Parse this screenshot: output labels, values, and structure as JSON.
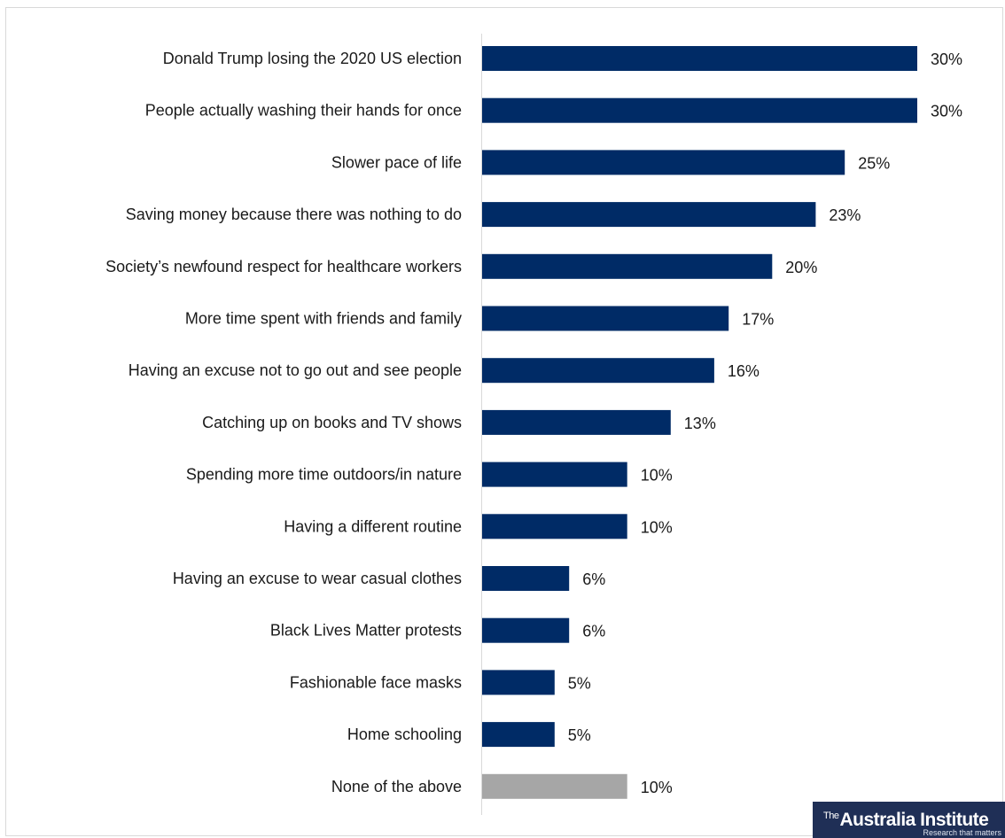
{
  "chart_data": {
    "type": "bar",
    "orientation": "horizontal",
    "categories": [
      "Donald Trump losing the 2020 US election",
      "People actually washing their hands for once",
      "Slower pace of life",
      "Saving money because there was nothing to do",
      "Society’s newfound respect for healthcare workers",
      "More time spent with friends and family",
      "Having an excuse not to go out and see people",
      "Catching up on books and TV shows",
      "Spending more time outdoors/in nature",
      "Having a different routine",
      "Having an excuse to wear casual clothes",
      "Black Lives Matter protests",
      "Fashionable face masks",
      "Home schooling",
      "None of the above"
    ],
    "values": [
      30,
      30,
      25,
      23,
      20,
      17,
      16,
      13,
      10,
      10,
      6,
      6,
      5,
      5,
      10
    ],
    "value_labels": [
      "30%",
      "30%",
      "25%",
      "23%",
      "20%",
      "17%",
      "16%",
      "13%",
      "10%",
      "10%",
      "6%",
      "6%",
      "5%",
      "5%",
      "10%"
    ],
    "bar_colors": [
      "#002b66",
      "#002b66",
      "#002b66",
      "#002b66",
      "#002b66",
      "#002b66",
      "#002b66",
      "#002b66",
      "#002b66",
      "#002b66",
      "#002b66",
      "#002b66",
      "#002b66",
      "#002b66",
      "#a6a6a6"
    ],
    "xlim": [
      0,
      30
    ],
    "grid": false,
    "legend": "none"
  },
  "logo": {
    "prefix": "The",
    "name": "Australia Institute",
    "tagline": "Research that matters"
  },
  "colors": {
    "primary_bar": "#002b66",
    "secondary_bar": "#a6a6a6",
    "axis": "#d9d9d9",
    "logo_bg": "#1f2f56"
  }
}
